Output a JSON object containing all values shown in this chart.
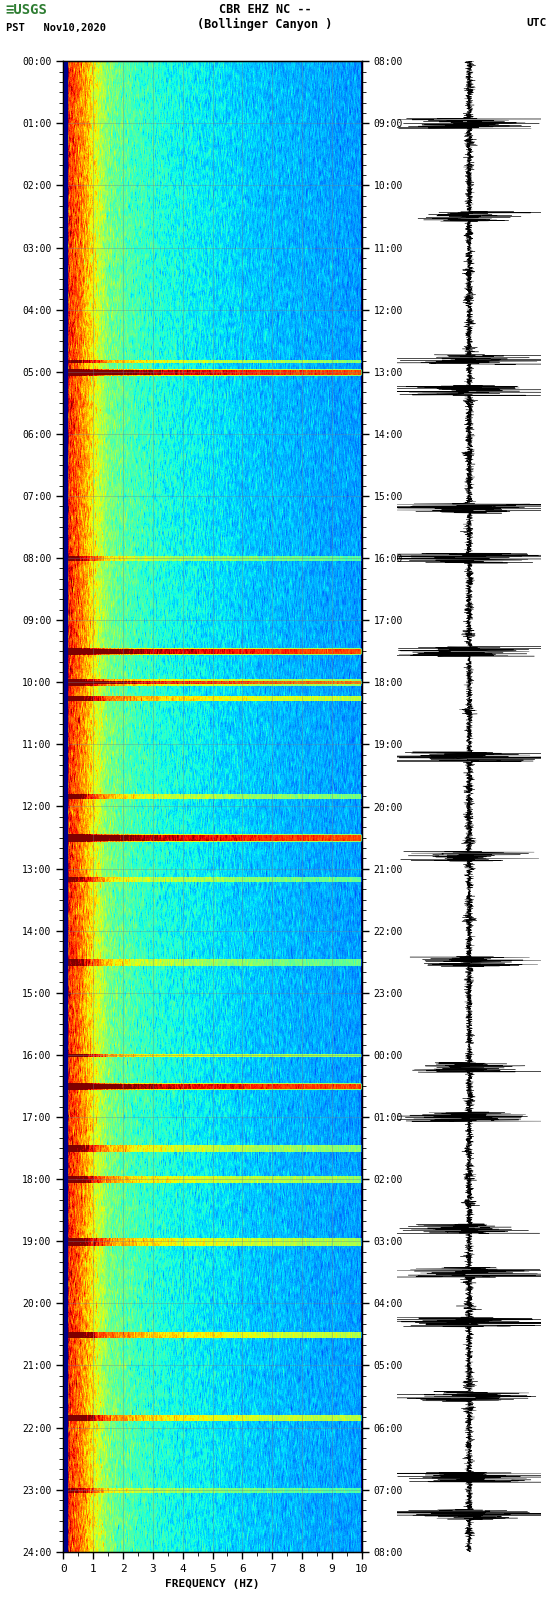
{
  "title_line1": "CBR EHZ NC --",
  "title_line2": "(Bollinger Canyon )",
  "date_label": "PST   Nov10,2020",
  "utc_label": "UTC",
  "xlabel": "FREQUENCY (HZ)",
  "freq_min": 0,
  "freq_max": 10,
  "background_color": "#ffffff",
  "usgs_green": "#2e7d32",
  "spectrogram_cmap": "jet",
  "fig_width": 5.52,
  "fig_height": 16.13,
  "n_times": 1440,
  "n_freqs": 300,
  "blue_strip_freq": 0.12,
  "dark_red_freq": 1.5,
  "transition_freq": 3.5,
  "base_energies": [
    9.5,
    8.8,
    8.0,
    6.5,
    5.0,
    4.2,
    3.8,
    3.5,
    3.2,
    3.0,
    2.8
  ],
  "freq_breakpoints": [
    0,
    0.12,
    0.5,
    1.0,
    1.5,
    2.5,
    3.5,
    5.0,
    6.5,
    8.0,
    10.0
  ],
  "noise_level": 1.2,
  "vmin": 0,
  "vmax": 10,
  "grid_color": "#708090",
  "grid_alpha": 0.5,
  "grid_linewidth": 0.5
}
